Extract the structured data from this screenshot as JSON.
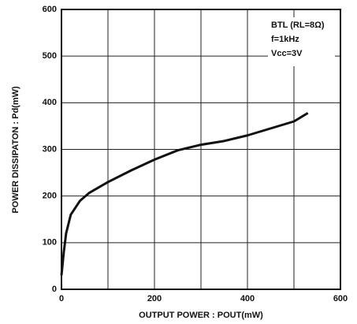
{
  "chart_data": {
    "type": "line",
    "xlabel": "OUTPUT POWER : POUT(mW)",
    "ylabel": "POWER DISSIPATON : Pd(mW)",
    "annotations": [
      "BTL (RL=8Ω)",
      "f=1kHz",
      "Vcc=3V"
    ],
    "x": [
      0,
      5,
      10,
      20,
      40,
      60,
      100,
      150,
      200,
      250,
      300,
      350,
      400,
      450,
      500,
      530
    ],
    "series": [
      {
        "color": "#111111",
        "values": [
          30,
          80,
          120,
          160,
          190,
          207,
          230,
          255,
          278,
          298,
          310,
          318,
          330,
          345,
          360,
          378
        ]
      }
    ],
    "xlim": [
      0,
      600
    ],
    "xticks": [
      0,
      200,
      400,
      600
    ],
    "xminor": [
      100,
      300,
      500
    ],
    "ylim": [
      0,
      600
    ],
    "yticks": [
      0,
      100,
      200,
      300,
      400,
      500,
      600
    ],
    "grid": true
  }
}
